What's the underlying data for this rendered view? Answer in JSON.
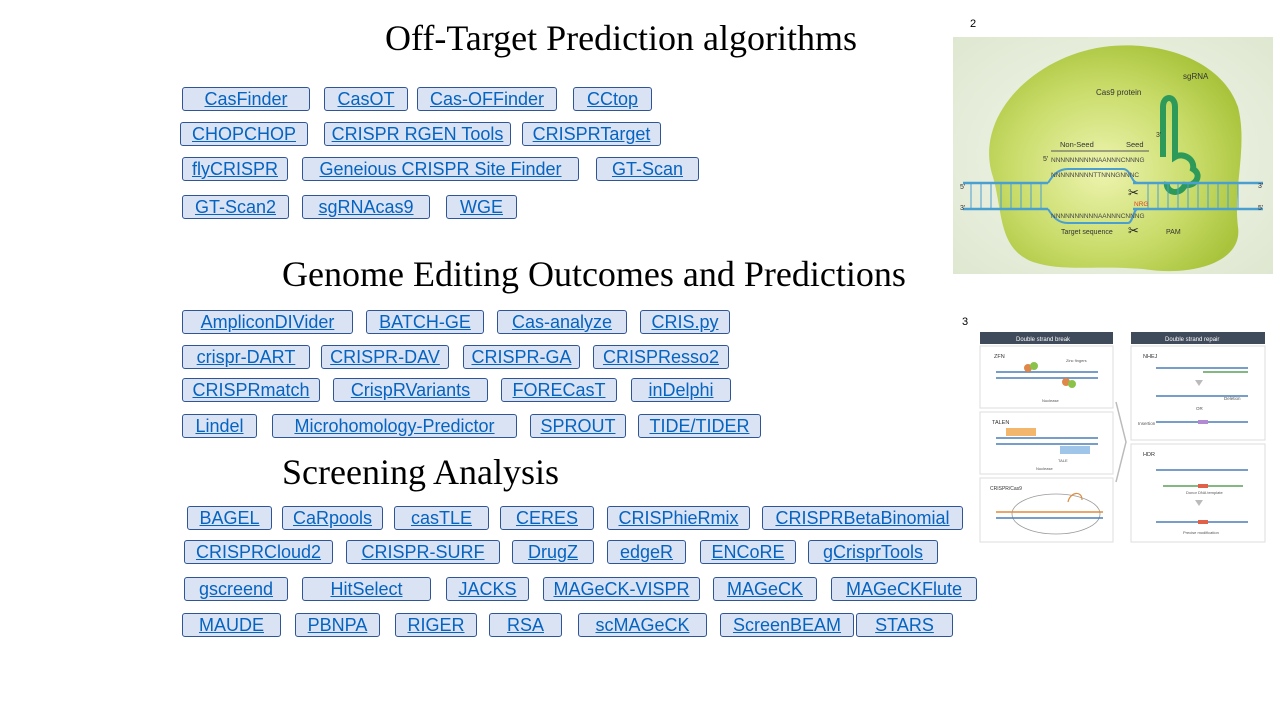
{
  "sections": {
    "offtarget": {
      "title": "Off-Target Prediction algorithms",
      "tools": [
        "CasFinder",
        "CasOT",
        "Cas-OFFinder",
        "CCtop",
        "CHOPCHOP",
        "CRISPR RGEN Tools",
        "CRISPRTarget",
        "flyCRISPR",
        "Geneious CRISPR Site Finder",
        "GT-Scan",
        "GT-Scan2",
        "sgRNAcas9",
        "WGE"
      ]
    },
    "genome": {
      "title": "Genome Editing Outcomes and Predictions",
      "tools": [
        "AmpliconDIVider",
        "BATCH-GE",
        "Cas-analyze",
        "CRIS.py",
        "crispr-DART",
        "CRISPR-DAV",
        "CRISPR-GA",
        "CRISPResso2",
        "CRISPRmatch",
        "CrispRVariants",
        "FORECasT",
        "inDelphi",
        "Lindel",
        "Microhomology-Predictor",
        "SPROUT",
        "TIDE/TIDER"
      ]
    },
    "screening": {
      "title": "Screening Analysis",
      "tools": [
        "BAGEL",
        "CaRpools",
        "casTLE",
        "CERES",
        "CRISPhieRmix",
        "CRISPRBetaBinomial",
        "CRISPRCloud2",
        "CRISPR-SURF",
        "DrugZ",
        "edgeR",
        "ENCoRE",
        "gCrisprTools",
        "gscreend",
        "HitSelect",
        "JACKS",
        "MAGeCK-VISPR",
        "MAGeCK",
        "MAGeCKFlute",
        "MAUDE",
        "PBNPA",
        "RIGER",
        "RSA",
        "scMAGeCK",
        "ScreenBEAM",
        "STARS"
      ]
    }
  },
  "figure2": {
    "number": "2",
    "labels": {
      "sgrna": "sgRNA",
      "cas9": "Cas9 protein",
      "nonseed": "Non-Seed",
      "seed": "Seed",
      "seq_top": "NNNNNNNNNNAANNNCNNNG",
      "seq_mid": "NNNNNNNNNTTNNNGNNNC",
      "seq_bot": "NNNNNNNNNNAANNNCNNNG",
      "target": "Target sequence",
      "nrg": "NRG",
      "pam": "PAM",
      "five": "5'",
      "three": "3'"
    }
  },
  "figure3": {
    "number": "3",
    "labels": {
      "dsb": "Double strand break",
      "dsr": "Double strand repair",
      "zfn": "ZFN",
      "zinc": "Zinc fingers",
      "nuclease": "Nuclease",
      "talen": "TALEN",
      "tale": "TALE",
      "crispr": "CRISPR/Cas9",
      "nhej": "NHEJ",
      "deletion": "Deletion",
      "or": "OR",
      "insertion": "Insertion",
      "hdr": "HDR",
      "donor": "Donor DNA template",
      "precise": "Precise modification"
    }
  }
}
